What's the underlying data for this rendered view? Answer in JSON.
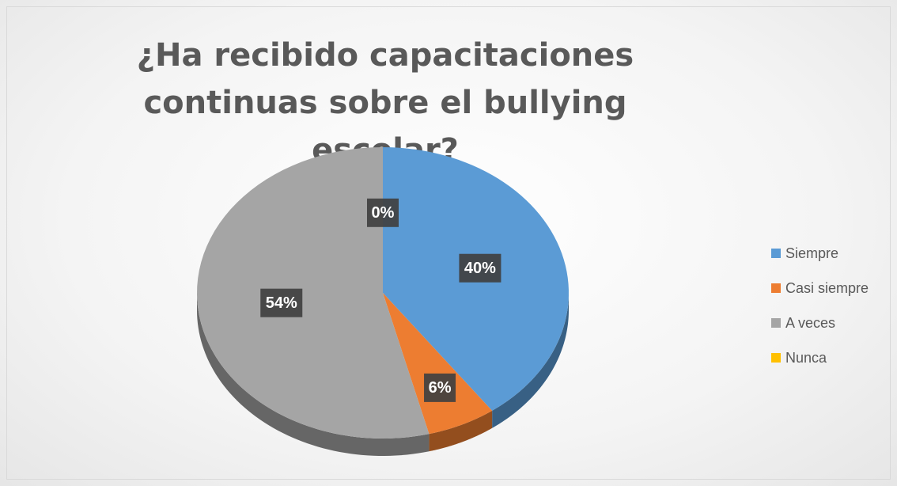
{
  "chart_data": {
    "type": "pie",
    "title": "¿Ha recibido capacitaciones continuas sobre el bullying escolar?",
    "categories": [
      "Siempre",
      "Casi siempre",
      "A veces",
      "Nunca"
    ],
    "values": [
      40,
      6,
      54,
      0
    ],
    "value_labels": [
      "40%",
      "6%",
      "54%",
      "0%"
    ],
    "colors": [
      "#5b9bd5",
      "#ed7d31",
      "#a5a5a5",
      "#ffc000"
    ],
    "legend": "right"
  }
}
